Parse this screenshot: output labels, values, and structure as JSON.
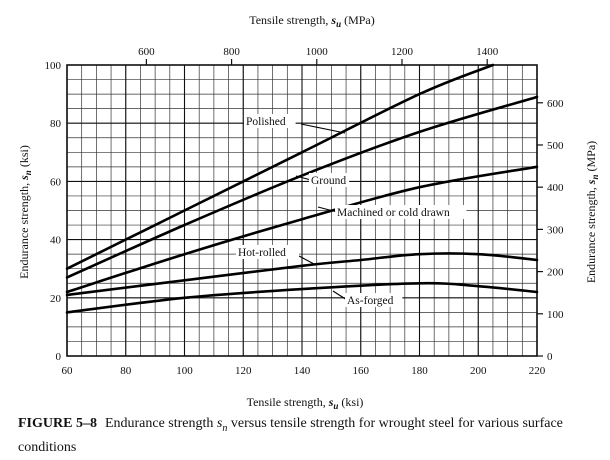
{
  "chart_data": {
    "type": "line",
    "xlabel": "Tensile strength, s_u (ksi)",
    "x2label": "Tensile strength, s_u (MPa)",
    "ylabel": "Endurance strength, s_n (ksi)",
    "y2label": "Endurance strength, s_n (MPa)",
    "xlim": [
      60,
      220
    ],
    "ylim": [
      0,
      100
    ],
    "x_ticks": [
      "60",
      "80",
      "100",
      "120",
      "140",
      "160",
      "180",
      "200",
      "220"
    ],
    "y_ticks": [
      "0",
      "20",
      "40",
      "60",
      "80",
      "100"
    ],
    "x2_ticks": [
      "600",
      "800",
      "1000",
      "1200",
      "1400"
    ],
    "y2_ticks": [
      "0",
      "100",
      "200",
      "300",
      "400",
      "500",
      "600"
    ],
    "grid": true,
    "series": [
      {
        "name": "Polished",
        "x": [
          60,
          100,
          140,
          180,
          205
        ],
        "y": [
          30,
          50,
          70,
          90,
          100
        ]
      },
      {
        "name": "Ground",
        "x": [
          60,
          100,
          140,
          180,
          220
        ],
        "y": [
          27,
          45,
          62,
          77,
          89
        ]
      },
      {
        "name": "Machined or cold drawn",
        "x": [
          60,
          100,
          140,
          180,
          220
        ],
        "y": [
          22,
          35,
          47,
          58,
          65
        ]
      },
      {
        "name": "Hot-rolled",
        "x": [
          60,
          100,
          140,
          160,
          180,
          200,
          220
        ],
        "y": [
          21,
          26,
          31,
          33,
          35,
          35,
          33
        ]
      },
      {
        "name": "As-forged",
        "x": [
          60,
          100,
          140,
          180,
          200,
          220
        ],
        "y": [
          15,
          20,
          23,
          25,
          24,
          22
        ]
      }
    ]
  },
  "caption": {
    "figure_number": "FIGURE 5–8",
    "text": "Endurance strength s_n versus tensile strength for wrought steel for various surface conditions"
  }
}
